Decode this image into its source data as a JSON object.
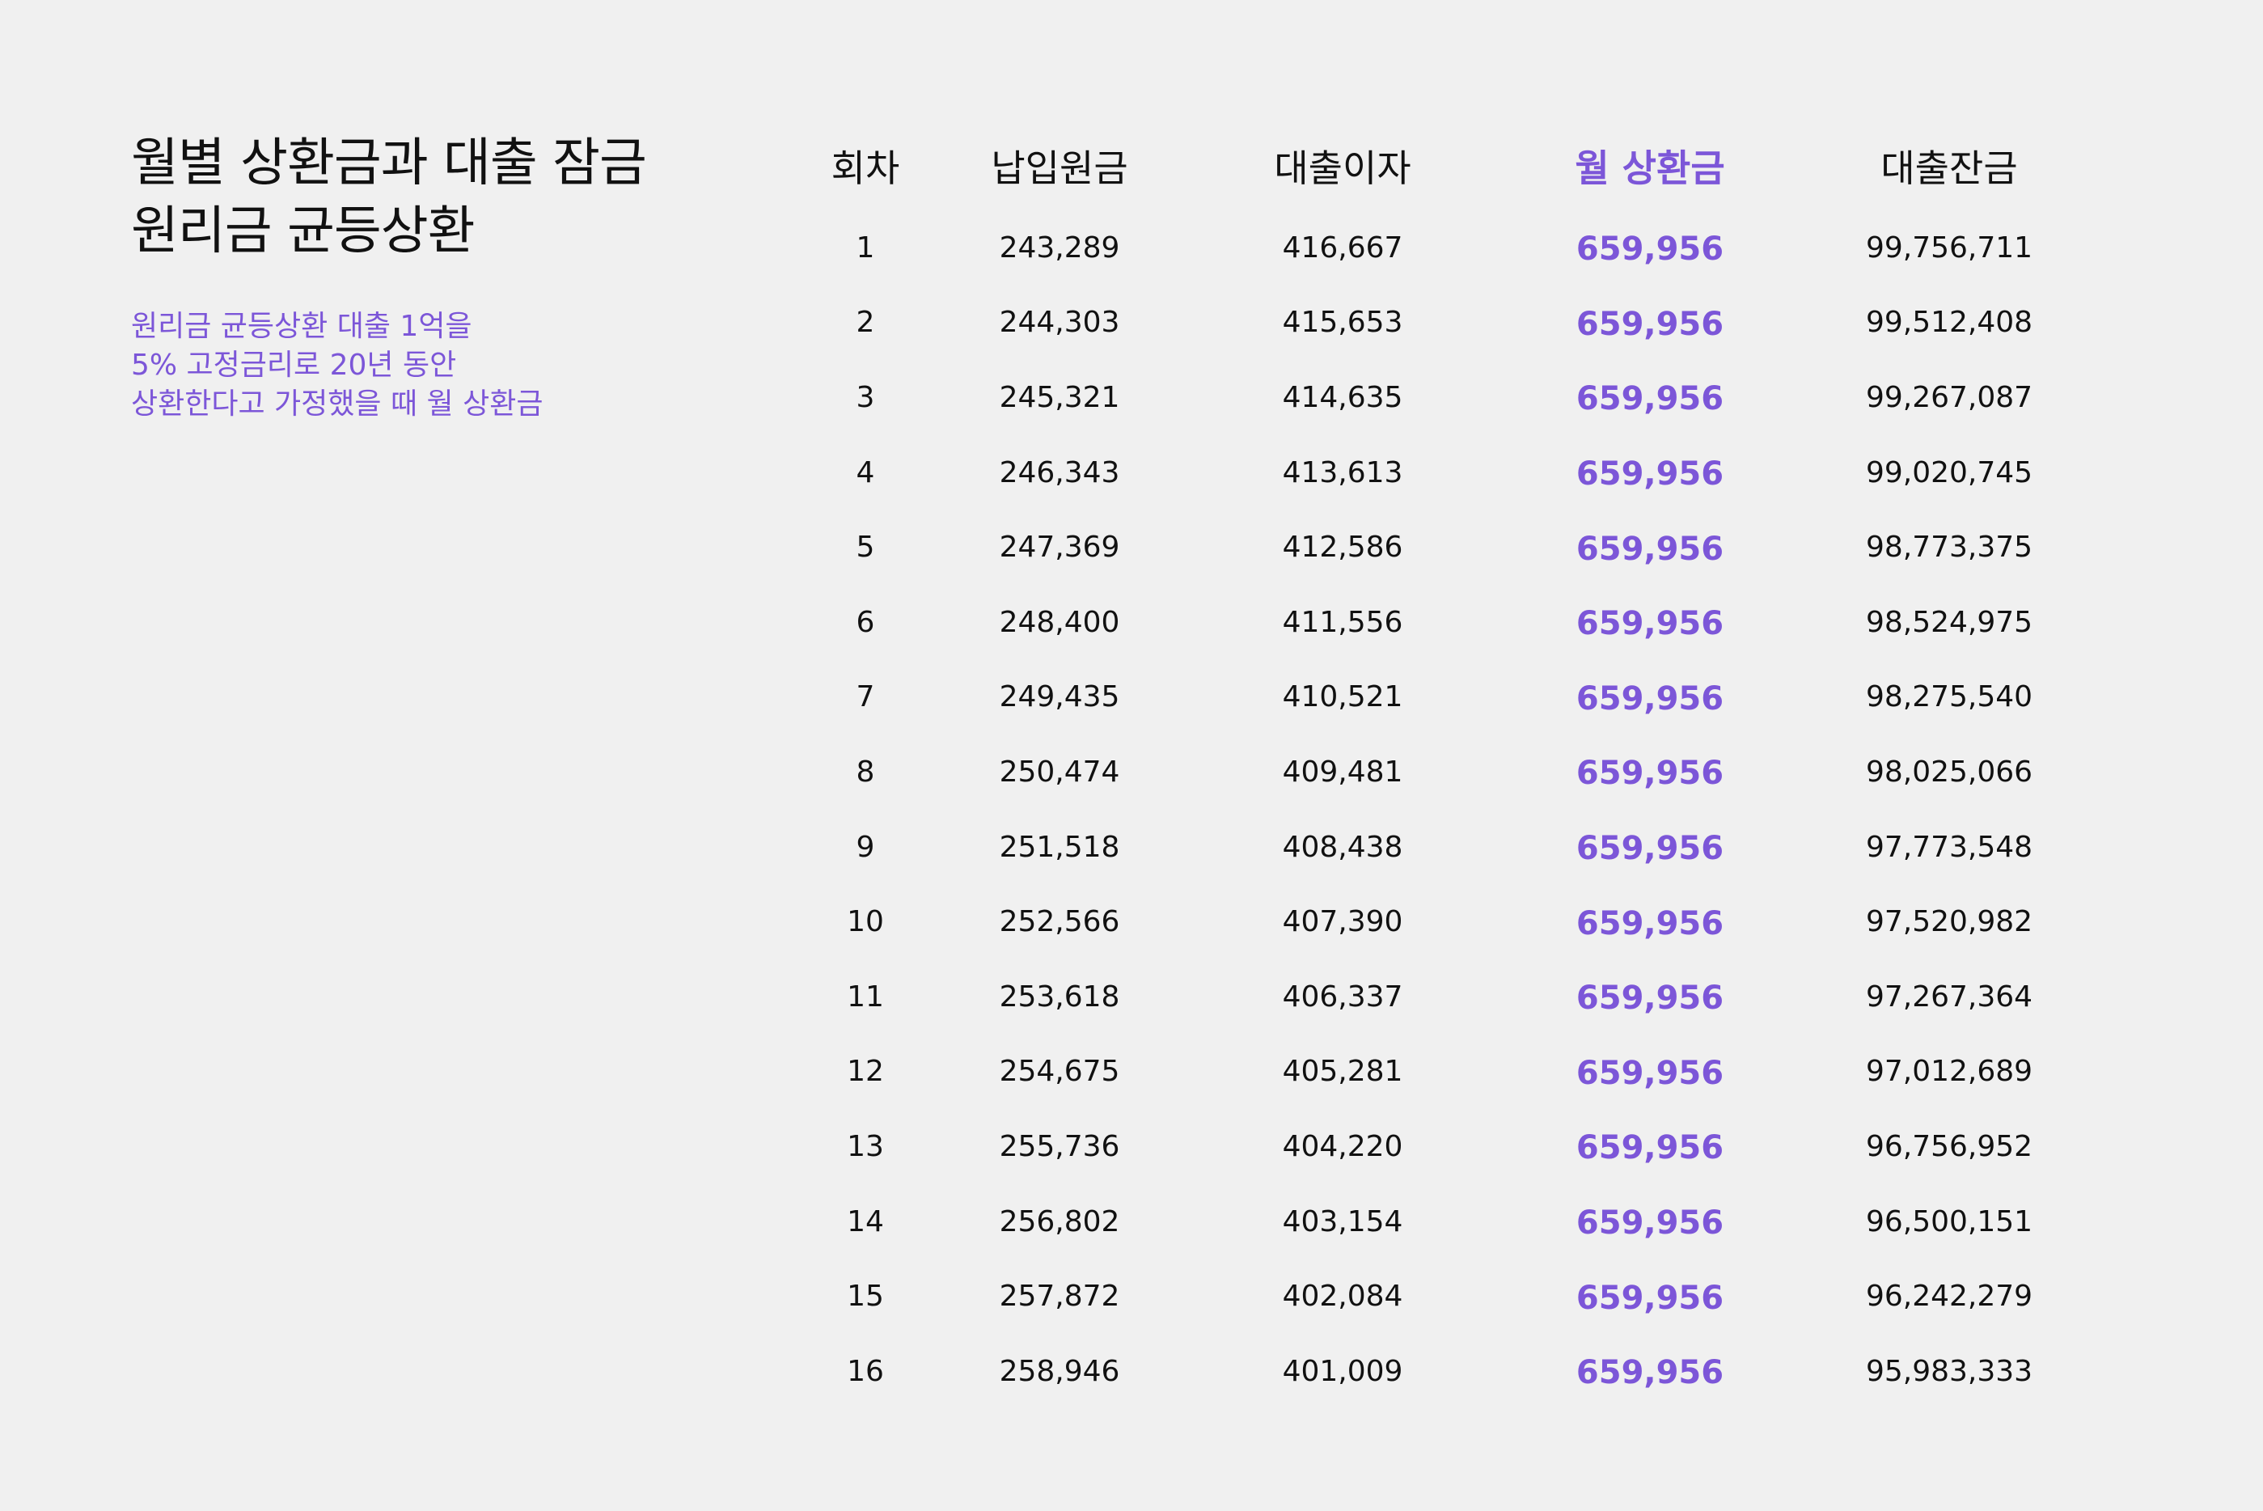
{
  "title": {
    "line1": "월별 상환금과 대출 잠금",
    "line2": "원리금 균등상환"
  },
  "description": {
    "line1": "원리금 균등상환 대출 1억을",
    "line2": "5% 고정금리로 20년 동안",
    "line3": "상환한다고 가정했을 때 월 상환금"
  },
  "colors": {
    "background": "#f0f0f0",
    "text": "#111111",
    "accent": "#7c56d8"
  },
  "table": {
    "headers": [
      "회차",
      "납입원금",
      "대출이자",
      "월 상환금",
      "대출잔금"
    ],
    "rows": [
      [
        "1",
        "243,289",
        "416,667",
        "659,956",
        "99,756,711"
      ],
      [
        "2",
        "244,303",
        "415,653",
        "659,956",
        "99,512,408"
      ],
      [
        "3",
        "245,321",
        "414,635",
        "659,956",
        "99,267,087"
      ],
      [
        "4",
        "246,343",
        "413,613",
        "659,956",
        "99,020,745"
      ],
      [
        "5",
        "247,369",
        "412,586",
        "659,956",
        "98,773,375"
      ],
      [
        "6",
        "248,400",
        "411,556",
        "659,956",
        "98,524,975"
      ],
      [
        "7",
        "249,435",
        "410,521",
        "659,956",
        "98,275,540"
      ],
      [
        "8",
        "250,474",
        "409,481",
        "659,956",
        "98,025,066"
      ],
      [
        "9",
        "251,518",
        "408,438",
        "659,956",
        "97,773,548"
      ],
      [
        "10",
        "252,566",
        "407,390",
        "659,956",
        "97,520,982"
      ],
      [
        "11",
        "253,618",
        "406,337",
        "659,956",
        "97,267,364"
      ],
      [
        "12",
        "254,675",
        "405,281",
        "659,956",
        "97,012,689"
      ],
      [
        "13",
        "255,736",
        "404,220",
        "659,956",
        "96,756,952"
      ],
      [
        "14",
        "256,802",
        "403,154",
        "659,956",
        "96,500,151"
      ],
      [
        "15",
        "257,872",
        "402,084",
        "659,956",
        "96,242,279"
      ],
      [
        "16",
        "258,946",
        "401,009",
        "659,956",
        "95,983,333"
      ]
    ]
  }
}
